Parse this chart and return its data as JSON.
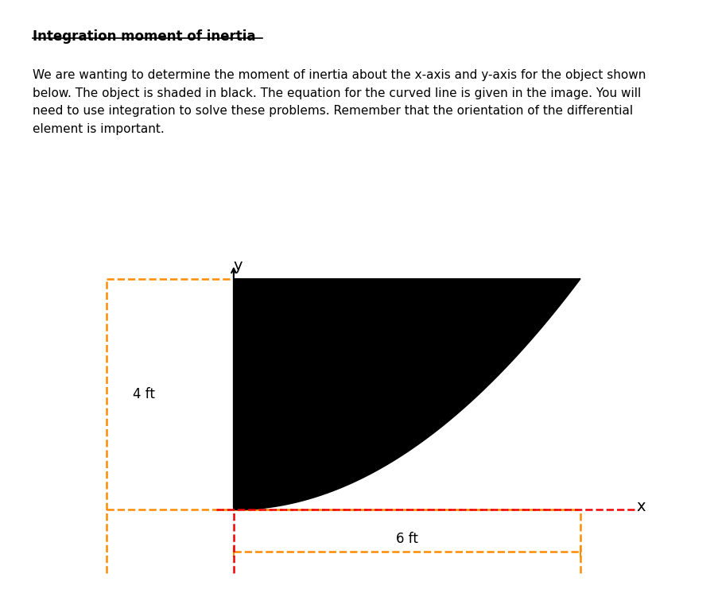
{
  "title": "Integration moment of inertia",
  "body_text": "We are wanting to determine the moment of inertia about the x-axis and y-axis for the object shown\nbelow. The object is shaded in black. The equation for the curved line is given in the image. You will\nneed to use integration to solve these problems. Remember that the orientation of the differential\nelement is important.",
  "title_fontsize": 12,
  "body_fontsize": 11,
  "x_max": 6,
  "y_max": 4,
  "label_4ft": "4 ft",
  "label_6ft": "6 ft",
  "label_x": "x",
  "label_y": "y",
  "orange_dash_color": "#FF8C00",
  "red_dash_color": "#EE0000",
  "black_fill": "#000000",
  "background": "#FFFFFF"
}
